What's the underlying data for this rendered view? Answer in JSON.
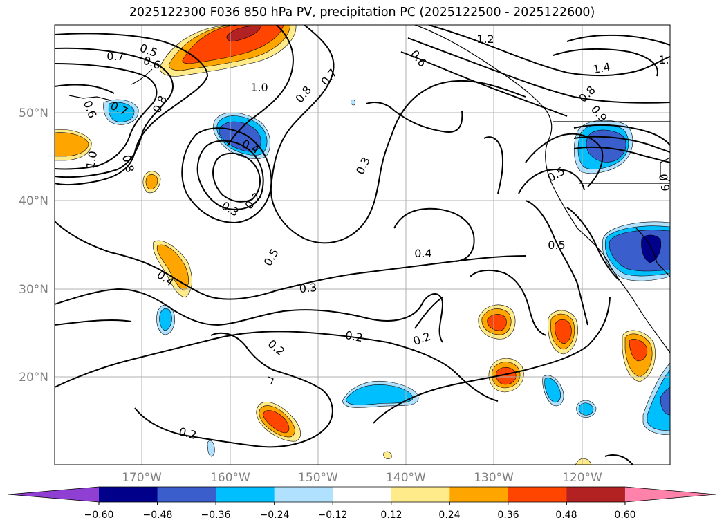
{
  "title": "2025122300 F036 850 hPa PV, precipitation PC (2025122500 - 2025122600)",
  "map": {
    "lat_labels": [
      "50°N",
      "40°N",
      "30°N",
      "20°N"
    ],
    "lon_labels": [
      "170°W",
      "160°W",
      "150°W",
      "140°W",
      "130°W",
      "120°W"
    ],
    "contour_labels": [
      {
        "text": "0.7"
      },
      {
        "text": "0.5"
      },
      {
        "text": "0.6"
      },
      {
        "text": "0.7"
      },
      {
        "text": "0.6"
      },
      {
        "text": "0.8"
      },
      {
        "text": "1.0"
      },
      {
        "text": "0.8"
      },
      {
        "text": "0.7"
      },
      {
        "text": "0.6"
      },
      {
        "text": "1.2"
      },
      {
        "text": "1.4"
      },
      {
        "text": "1."
      },
      {
        "text": "0.8"
      },
      {
        "text": "0.9"
      },
      {
        "text": "1.0"
      },
      {
        "text": "0.8"
      },
      {
        "text": "0.4"
      },
      {
        "text": "0.3"
      },
      {
        "text": "0.2"
      },
      {
        "text": "0.3"
      },
      {
        "text": "0.5"
      },
      {
        "text": "0.5"
      },
      {
        "text": "0.4"
      },
      {
        "text": "0.4"
      },
      {
        "text": "0.5"
      },
      {
        "text": "0.3"
      },
      {
        "text": "0.2"
      },
      {
        "text": "0.2"
      },
      {
        "text": "0.2"
      },
      {
        "text": "0.2"
      },
      {
        "text": "0.9"
      }
    ]
  },
  "colorbar": {
    "colors": [
      "#8f3fd1",
      "#00008b",
      "#3a5fcd",
      "#00bfff",
      "#b0e2ff",
      "#ffffff",
      "#ffeb8a",
      "#ffa500",
      "#ff4500",
      "#b22222",
      "#ff82ab"
    ],
    "ticks": [
      "−0.60",
      "−0.48",
      "−0.36",
      "−0.24",
      "−0.12",
      "0.12",
      "0.24",
      "0.36",
      "0.48",
      "0.60"
    ]
  }
}
